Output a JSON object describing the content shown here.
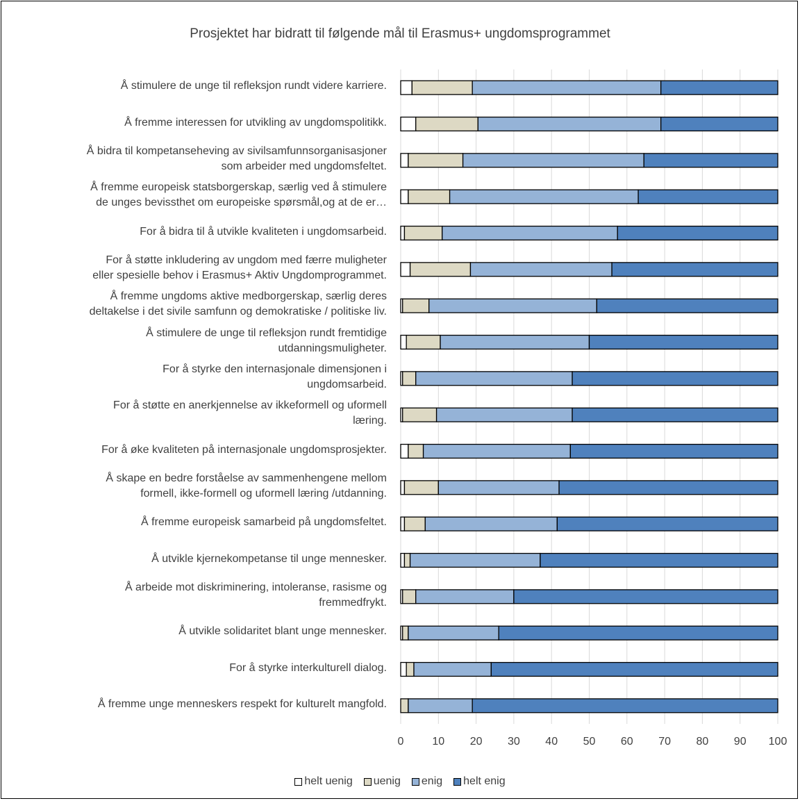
{
  "chart_data": {
    "type": "bar",
    "orientation": "horizontal",
    "stacked": true,
    "title": "Prosjektet har bidratt til følgende mål til Erasmus+ ungdomsprogrammet",
    "xlim": [
      0,
      100
    ],
    "xticks": [
      "0",
      "10",
      "20",
      "30",
      "40",
      "50",
      "60",
      "70",
      "80",
      "90",
      "100"
    ],
    "grid": true,
    "legend_position": "bottom",
    "categories": [
      "Å stimulere de unge til refleksjon rundt videre karriere.",
      "Å fremme interessen for utvikling av ungdomspolitikk.",
      "Å bidra til kompetanseheving av sivilsamfunnsorganisasjoner som arbeider med ungdomsfeltet.",
      "Å fremme europeisk statsborgerskap, særlig ved å stimulere de unges bevissthet om europeiske spørsmål,og at de er…",
      "For å bidra til å utvikle kvaliteten i ungdomsarbeid.",
      "For å støtte inkludering av ungdom med færre muligheter eller spesielle behov i Erasmus+ Aktiv Ungdomprogrammet.",
      "Å fremme ungdoms aktive medborgerskap, særlig deres deltakelse i det sivile samfunn og demokratiske / politiske liv.",
      "Å stimulere de unge til refleksjon rundt fremtidige utdanningsmuligheter.",
      "For å styrke den internasjonale dimensjonen i ungdomsarbeid.",
      "For å støtte en anerkjennelse av ikkeformell og uformell læring.",
      "For å øke kvaliteten på internasjonale ungdomsprosjekter.",
      "Å skape en bedre forståelse av sammenhengene mellom formell, ikke-formell og uformell læring /utdanning.",
      "Å fremme europeisk samarbeid på ungdomsfeltet.",
      "Å utvikle kjernekompetanse til unge mennesker.",
      "Å arbeide mot diskriminering, intoleranse, rasisme og fremmedfrykt.",
      "Å utvikle solidaritet blant unge mennesker.",
      "For å styrke interkulturell dialog.",
      "Å fremme unge menneskers respekt for kulturelt mangfold."
    ],
    "category_lines": [
      [
        "Å stimulere de unge til refleksjon rundt videre karriere."
      ],
      [
        "Å fremme interessen for utvikling av ungdomspolitikk."
      ],
      [
        "Å bidra til kompetanseheving av sivilsamfunnsorganisasjoner",
        "som arbeider med ungdomsfeltet."
      ],
      [
        "Å fremme europeisk statsborgerskap, særlig ved å stimulere",
        "de unges bevissthet om europeiske spørsmål,og at de er…"
      ],
      [
        "For å bidra til å utvikle kvaliteten i ungdomsarbeid."
      ],
      [
        "For å støtte inkludering av ungdom med færre muligheter",
        "eller spesielle behov i Erasmus+ Aktiv Ungdomprogrammet."
      ],
      [
        "Å fremme ungdoms aktive medborgerskap, særlig deres",
        "deltakelse i det sivile samfunn og demokratiske / politiske liv."
      ],
      [
        "Å stimulere de unge til refleksjon rundt fremtidige",
        "utdanningsmuligheter."
      ],
      [
        "For å styrke den internasjonale dimensjonen i",
        "ungdomsarbeid."
      ],
      [
        "For å støtte en anerkjennelse av ikkeformell og uformell",
        "læring."
      ],
      [
        "For å øke kvaliteten på internasjonale ungdomsprosjekter."
      ],
      [
        "Å skape en bedre forståelse av sammenhengene mellom",
        "formell, ikke-formell og uformell læring /utdanning."
      ],
      [
        "Å fremme europeisk samarbeid på ungdomsfeltet."
      ],
      [
        "Å utvikle kjernekompetanse til unge mennesker."
      ],
      [
        "Å arbeide mot diskriminering, intoleranse, rasisme og",
        "fremmedfrykt."
      ],
      [
        "Å utvikle solidaritet blant unge mennesker."
      ],
      [
        "For å styrke interkulturell dialog."
      ],
      [
        "Å fremme unge menneskers respekt for kulturelt mangfold."
      ]
    ],
    "series": [
      {
        "name": "helt uenig",
        "color": "#ffffff",
        "values": [
          3,
          4,
          2,
          2,
          1,
          2.5,
          0.5,
          1.5,
          0.5,
          0.5,
          2,
          1,
          1,
          1,
          0.5,
          0.5,
          1.5,
          0
        ]
      },
      {
        "name": "uenig",
        "color": "#ddd9c4",
        "values": [
          16,
          16.5,
          14.5,
          11,
          10,
          16,
          7,
          9,
          3.5,
          9,
          4,
          9,
          5.5,
          1.5,
          3.5,
          1.5,
          2,
          2
        ]
      },
      {
        "name": "enig",
        "color": "#95b3d7",
        "values": [
          50,
          48.5,
          48,
          50,
          46.5,
          37.5,
          44.5,
          39.5,
          41.5,
          36,
          39,
          32,
          35,
          34.5,
          26,
          24,
          20.5,
          17
        ]
      },
      {
        "name": "helt enig",
        "color": "#4f81bd",
        "values": [
          31,
          31,
          35.5,
          37,
          42.5,
          44,
          48,
          50,
          54.5,
          54.5,
          55,
          58,
          58.5,
          63,
          70,
          74,
          76,
          81
        ]
      }
    ]
  }
}
